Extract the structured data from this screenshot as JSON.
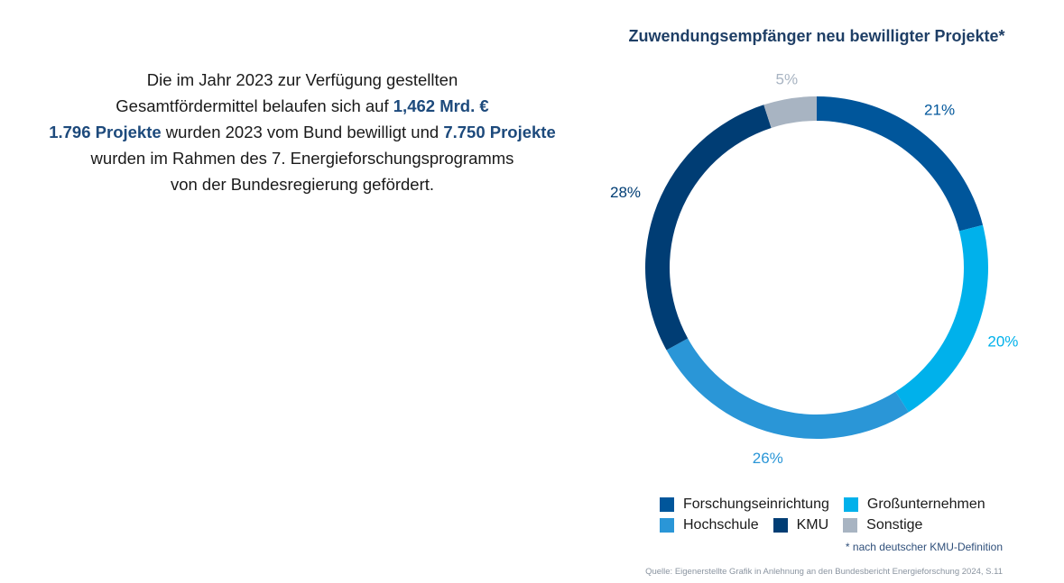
{
  "intro": {
    "line1": "Die im Jahr 2023 zur Verfügung gestellten",
    "line2_pre": "Gesamtfördermittel belaufen sich auf ",
    "line2_hl": "1,462 Mrd. €",
    "line3_hl1": "1.796 Projekte",
    "line3_mid": " wurden 2023 vom Bund bewilligt und ",
    "line3_hl2": "7.750 Projekte",
    "line4": "wurden im Rahmen des 7. Energieforschungsprogramms",
    "line5": "von der Bundesregierung gefördert."
  },
  "chart_data": {
    "type": "pie",
    "variant": "donut",
    "title": "Zuwendungsempfänger neu bewilligter Projekte*",
    "categories": [
      "Forschungseinrichtung",
      "Großunternehmen",
      "Hochschule",
      "KMU",
      "Sonstige"
    ],
    "values": [
      21,
      20,
      26,
      28,
      5
    ],
    "labels": [
      "21%",
      "20%",
      "26%",
      "28%",
      "5%"
    ],
    "colors": [
      "#00569b",
      "#00b1eb",
      "#2a96d7",
      "#003d74",
      "#a8b4c2"
    ],
    "legend_position": "bottom",
    "legend": [
      {
        "label": "Forschungseinrichtung",
        "color": "#00569b"
      },
      {
        "label": "Großunternehmen",
        "color": "#00b1eb"
      },
      {
        "label": "Hochschule",
        "color": "#2a96d7"
      },
      {
        "label": "KMU",
        "color": "#003d74"
      },
      {
        "label": "Sonstige",
        "color": "#a8b4c2"
      }
    ]
  },
  "footnote": "* nach deutscher KMU-Definition",
  "source": "Quelle: Eigenerstellte Grafik in Anlehnung an den Bundesbericht Energieforschung 2024, S.11"
}
